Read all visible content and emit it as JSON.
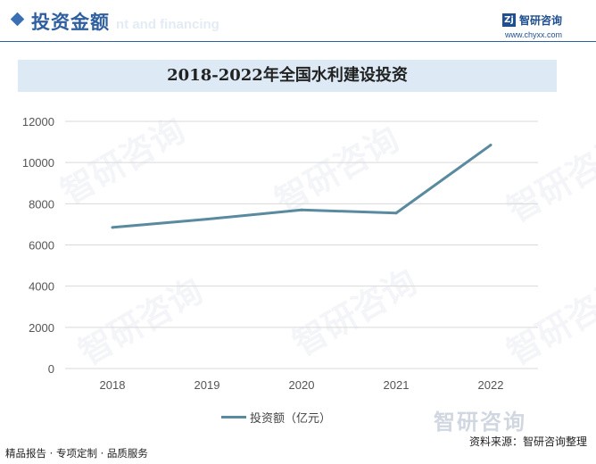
{
  "header": {
    "section_title": "投资金额",
    "section_subtitle": "nt and financing",
    "brand_logo": "Zj",
    "brand_name": "智研咨询",
    "brand_url": "www.chyxx.com"
  },
  "footer": {
    "left": "精品报告 · 专项定制 · 品质服务",
    "right": "资料来源：智研咨询整理",
    "watermark": "智研咨询"
  },
  "colors": {
    "line": "#5a8aa0",
    "grid": "#d9d9d9",
    "accent": "#2f5f9e"
  },
  "chart_data": {
    "type": "line",
    "title": "2018-2022年全国水利建设投资",
    "categories": [
      "2018",
      "2019",
      "2020",
      "2021",
      "2022"
    ],
    "series": [
      {
        "name": "投资额（亿元）",
        "values": [
          6850,
          7250,
          7700,
          7550,
          10850
        ]
      }
    ],
    "ylim": [
      0,
      12000
    ],
    "yticks": [
      "0",
      "2000",
      "4000",
      "6000",
      "8000",
      "10000",
      "12000"
    ],
    "grid": true,
    "legend": "bottom"
  }
}
